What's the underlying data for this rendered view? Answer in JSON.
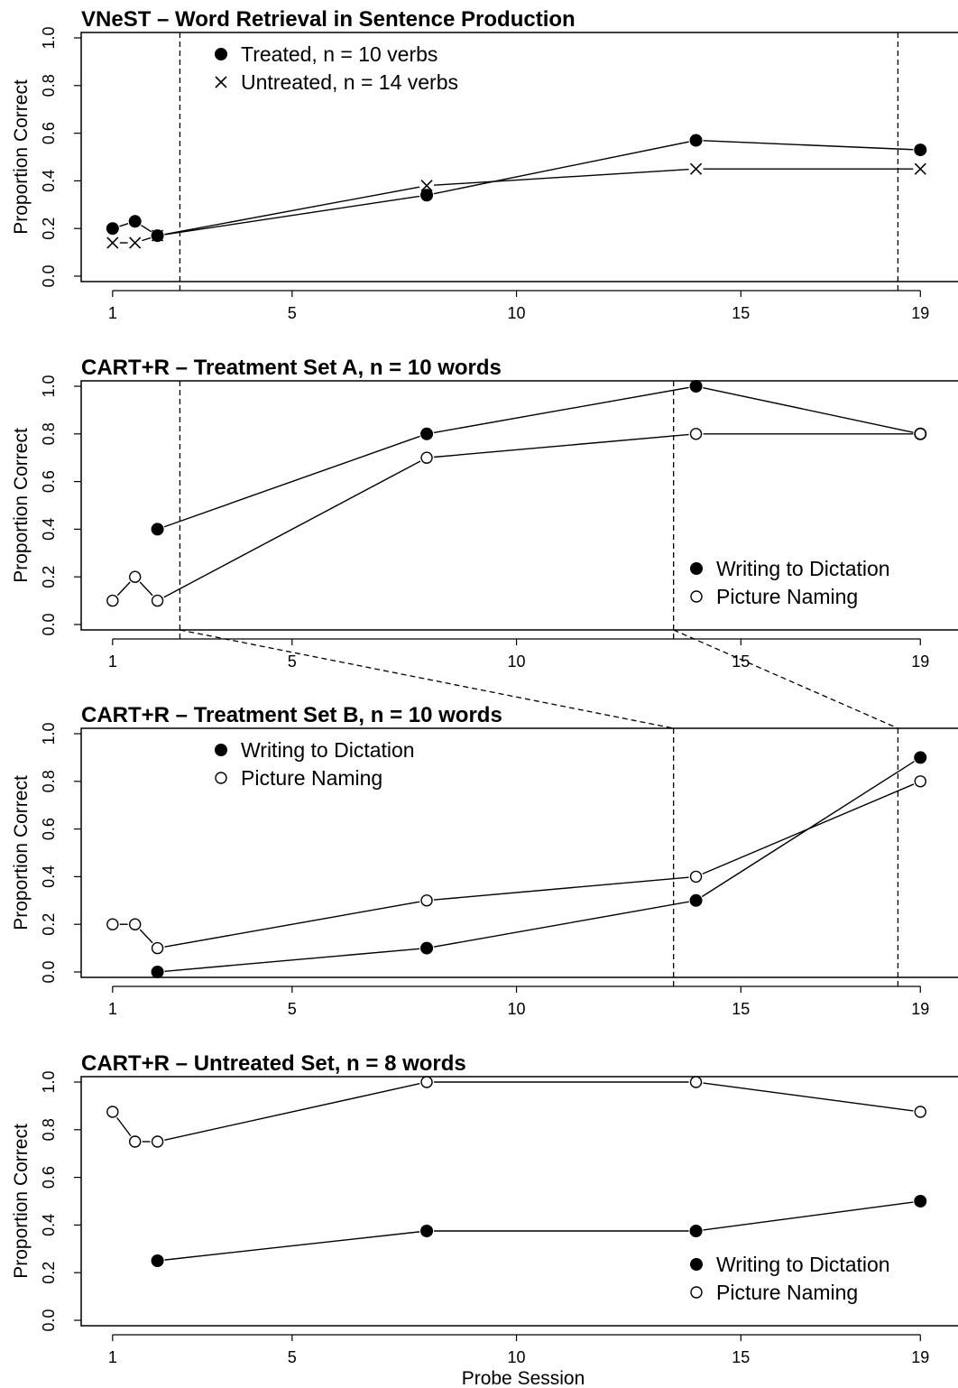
{
  "figure": {
    "xlabel": "Probe Session"
  },
  "chart_data": [
    {
      "type": "line",
      "title": "VNeST – Word Retrieval in Sentence Production",
      "ylabel": "Proportion Correct",
      "xlim": [
        0.3,
        20.1
      ],
      "ylim": [
        0.0,
        1.0
      ],
      "x_ticks": [
        1,
        5,
        10,
        15,
        19
      ],
      "y_ticks": [
        0.0,
        0.2,
        0.4,
        0.6,
        0.8,
        1.0
      ],
      "phase_lines_x": [
        2.5,
        18.5
      ],
      "legend_position": "top-left",
      "series": [
        {
          "name": "Treated, n = 10 verbs",
          "marker": "filled-circle",
          "x": [
            1,
            1.5,
            2,
            8,
            14,
            19
          ],
          "y": [
            0.2,
            0.23,
            0.17,
            0.34,
            0.57,
            0.53
          ]
        },
        {
          "name": "Untreated, n = 14 verbs",
          "marker": "cross",
          "x": [
            1,
            1.5,
            2,
            8,
            14,
            19
          ],
          "y": [
            0.14,
            0.14,
            0.17,
            0.38,
            0.45,
            0.45
          ]
        }
      ]
    },
    {
      "type": "line",
      "title": "CART+R – Treatment Set A, n = 10 words",
      "ylabel": "Proportion Correct",
      "xlim": [
        0.3,
        20.1
      ],
      "ylim": [
        0.0,
        1.0
      ],
      "x_ticks": [
        1,
        5,
        10,
        15,
        19
      ],
      "y_ticks": [
        0.0,
        0.2,
        0.4,
        0.6,
        0.8,
        1.0
      ],
      "phase_lines_x": [
        2.5,
        13.5
      ],
      "legend_position": "bottom-right",
      "series": [
        {
          "name": "Writing to Dictation",
          "marker": "filled-circle",
          "x": [
            2,
            8,
            14,
            19
          ],
          "y": [
            0.4,
            0.8,
            1.0,
            0.8
          ]
        },
        {
          "name": "Picture Naming",
          "marker": "open-circle",
          "x": [
            1,
            1.5,
            2,
            8,
            14,
            19
          ],
          "y": [
            0.1,
            0.2,
            0.1,
            0.7,
            0.8,
            0.8
          ]
        }
      ]
    },
    {
      "type": "line",
      "title": "CART+R – Treatment Set B, n = 10 words",
      "ylabel": "Proportion Correct",
      "xlim": [
        0.3,
        20.1
      ],
      "ylim": [
        0.0,
        1.0
      ],
      "x_ticks": [
        1,
        5,
        10,
        15,
        19
      ],
      "y_ticks": [
        0.0,
        0.2,
        0.4,
        0.6,
        0.8,
        1.0
      ],
      "phase_lines_x": [
        13.5,
        18.5
      ],
      "legend_position": "top-left",
      "series": [
        {
          "name": "Writing to Dictation",
          "marker": "filled-circle",
          "x": [
            2,
            8,
            14,
            19
          ],
          "y": [
            0.0,
            0.1,
            0.3,
            0.9
          ]
        },
        {
          "name": "Picture Naming",
          "marker": "open-circle",
          "x": [
            1,
            1.5,
            2,
            8,
            14,
            19
          ],
          "y": [
            0.2,
            0.2,
            0.1,
            0.3,
            0.4,
            0.8
          ]
        }
      ]
    },
    {
      "type": "line",
      "title": "CART+R – Untreated Set, n = 8 words",
      "ylabel": "Proportion Correct",
      "xlim": [
        0.3,
        20.1
      ],
      "ylim": [
        0.0,
        1.0
      ],
      "x_ticks": [
        1,
        5,
        10,
        15,
        19
      ],
      "y_ticks": [
        0.0,
        0.2,
        0.4,
        0.6,
        0.8,
        1.0
      ],
      "phase_lines_x": [],
      "legend_position": "bottom-right",
      "series": [
        {
          "name": "Writing to Dictation",
          "marker": "filled-circle",
          "x": [
            2,
            8,
            14,
            19
          ],
          "y": [
            0.25,
            0.375,
            0.375,
            0.5
          ]
        },
        {
          "name": "Picture Naming",
          "marker": "open-circle",
          "x": [
            1,
            1.5,
            2,
            8,
            14,
            19
          ],
          "y": [
            0.875,
            0.75,
            0.75,
            1.0,
            1.0,
            0.875
          ]
        }
      ]
    }
  ]
}
